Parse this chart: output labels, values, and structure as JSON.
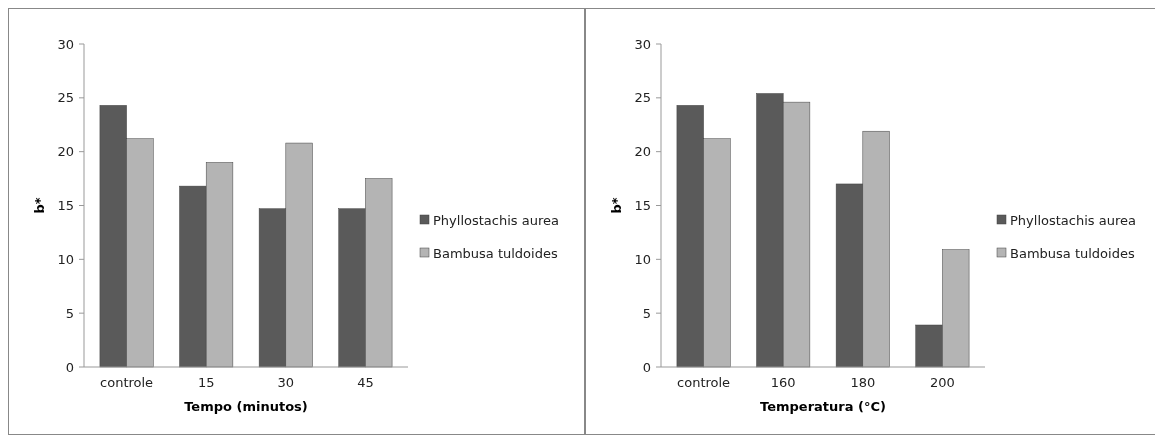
{
  "chart_data": [
    {
      "type": "bar",
      "xlabel": "Tempo (minutos)",
      "ylabel": "b*",
      "categories": [
        "controle",
        "15",
        "30",
        "45"
      ],
      "series": [
        {
          "name": "Phyllostachis aurea",
          "color": "#5a5a5a",
          "values": [
            24.3,
            16.8,
            14.7,
            14.7
          ]
        },
        {
          "name": "Bambusa tuldoides",
          "color": "#b4b4b4",
          "values": [
            21.2,
            19.0,
            20.8,
            17.5
          ]
        }
      ],
      "ylim": [
        0,
        30
      ],
      "yticks": [
        0,
        5,
        10,
        15,
        20,
        25,
        30
      ],
      "grid": false,
      "legend": "right"
    },
    {
      "type": "bar",
      "xlabel": "Temperatura (°C)",
      "ylabel": "b*",
      "categories": [
        "controle",
        "160",
        "180",
        "200"
      ],
      "series": [
        {
          "name": "Phyllostachis aurea",
          "color": "#5a5a5a",
          "values": [
            24.3,
            25.4,
            17.0,
            3.9
          ]
        },
        {
          "name": "Bambusa tuldoides",
          "color": "#b4b4b4",
          "values": [
            21.2,
            24.6,
            21.9,
            10.9
          ]
        }
      ],
      "ylim": [
        0,
        30
      ],
      "yticks": [
        0,
        5,
        10,
        15,
        20,
        25,
        30
      ],
      "grid": false,
      "legend": "right"
    }
  ]
}
